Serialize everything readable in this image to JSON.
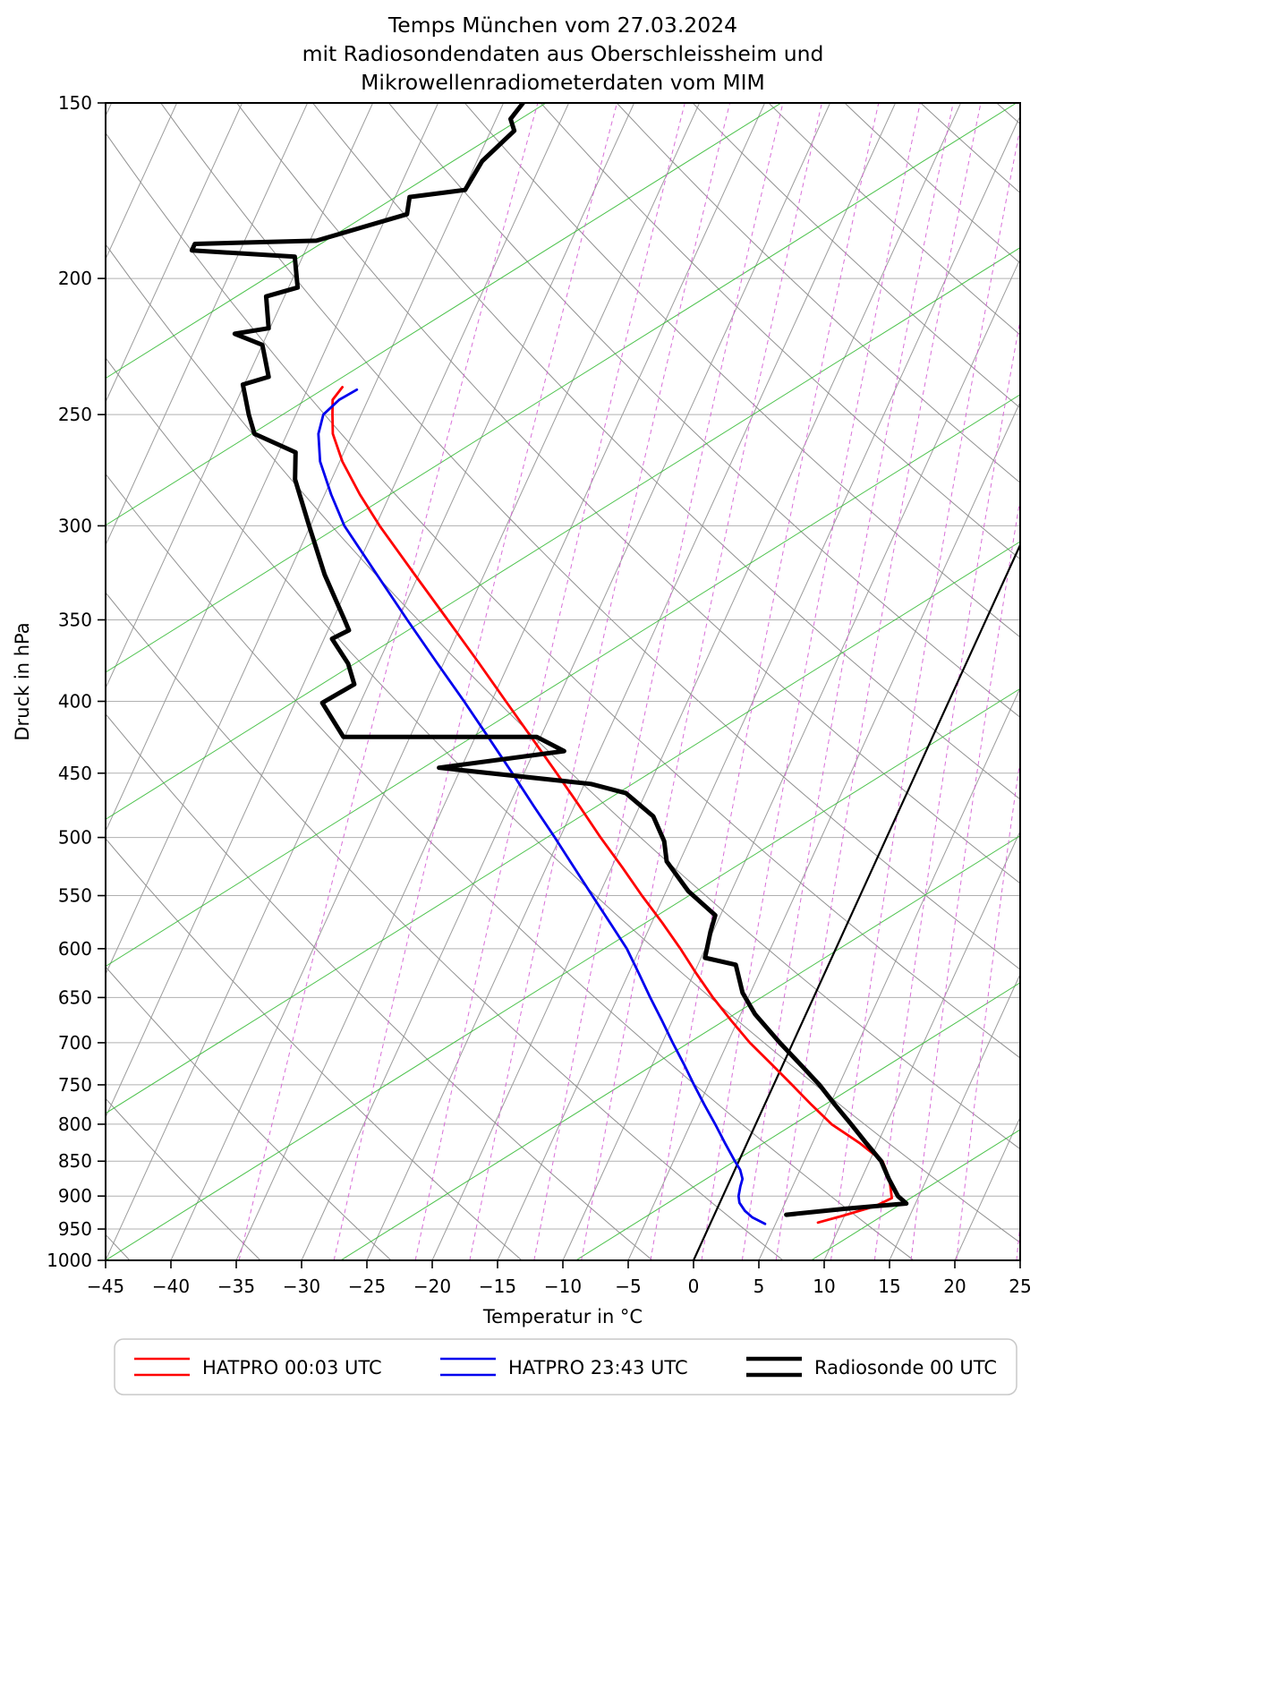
{
  "figure": {
    "title_lines": [
      "Temps München vom 27.03.2024",
      "mit Radiosondendaten aus Oberschleissheim und",
      "Mikrowellenradiometerdaten vom MIM"
    ],
    "xlabel": "Temperatur in °C",
    "ylabel": "Druck in hPa"
  },
  "axes": {
    "x_ticks": [
      {
        "value": -45,
        "label": "−45"
      },
      {
        "value": -40,
        "label": "−40"
      },
      {
        "value": -35,
        "label": "−35"
      },
      {
        "value": -30,
        "label": "−30"
      },
      {
        "value": -25,
        "label": "−25"
      },
      {
        "value": -20,
        "label": "−20"
      },
      {
        "value": -15,
        "label": "−15"
      },
      {
        "value": -10,
        "label": "−10"
      },
      {
        "value": -5,
        "label": "−5"
      },
      {
        "value": 0,
        "label": "0"
      },
      {
        "value": 5,
        "label": "5"
      },
      {
        "value": 10,
        "label": "10"
      },
      {
        "value": 15,
        "label": "15"
      },
      {
        "value": 20,
        "label": "20"
      },
      {
        "value": 25,
        "label": "25"
      }
    ],
    "y_ticks": [
      {
        "value": 150,
        "label": "150"
      },
      {
        "value": 200,
        "label": "200"
      },
      {
        "value": 250,
        "label": "250"
      },
      {
        "value": 300,
        "label": "300"
      },
      {
        "value": 350,
        "label": "350"
      },
      {
        "value": 400,
        "label": "400"
      },
      {
        "value": 450,
        "label": "450"
      },
      {
        "value": 500,
        "label": "500"
      },
      {
        "value": 550,
        "label": "550"
      },
      {
        "value": 600,
        "label": "600"
      },
      {
        "value": 650,
        "label": "650"
      },
      {
        "value": 700,
        "label": "700"
      },
      {
        "value": 750,
        "label": "750"
      },
      {
        "value": 800,
        "label": "800"
      },
      {
        "value": 850,
        "label": "850"
      },
      {
        "value": 900,
        "label": "900"
      },
      {
        "value": 950,
        "label": "950"
      },
      {
        "value": 1000,
        "label": "1000"
      }
    ]
  },
  "legend": {
    "entries": [
      {
        "label": "HATPRO 00:03 UTC",
        "color": "#ff0000",
        "width": 2.5
      },
      {
        "label": "HATPRO 23:43 UTC",
        "color": "#0000ee",
        "width": 2.5
      },
      {
        "label": "Radiosonde 00 UTC",
        "color": "#000000",
        "width": 4.5
      }
    ]
  },
  "chart_data": {
    "type": "line",
    "projection": "skew-t-log-p",
    "title": "Temps München vom 27.03.2024 mit Radiosondendaten aus Oberschleissheim und Mikrowellenradiometerdaten vom MIM",
    "x_axis": {
      "label": "Temperatur in °C",
      "range_c": [
        -45,
        25
      ],
      "skew_c_per_decade": 49.1
    },
    "y_axis": {
      "label": "Druck in hPa",
      "range_hpa": [
        150,
        1000
      ],
      "scale": "log"
    },
    "grid": {
      "isobars_hpa": [
        150,
        200,
        250,
        300,
        350,
        400,
        450,
        500,
        550,
        600,
        650,
        700,
        750,
        800,
        850,
        900,
        950,
        1000
      ],
      "isobar_color": "#b0b0b0",
      "isotherms_c": {
        "start": -120,
        "end": 40,
        "step": 5,
        "color": "#9c9c9c"
      },
      "zero_isotherm": {
        "t_c": 0,
        "color": "#000000",
        "width": 2.2
      },
      "dry_adiabats_theta_k": {
        "start": 220,
        "end": 450,
        "step": 10,
        "exponent": 0.2857,
        "color": "#909090"
      },
      "green_diagonals": {
        "t1000_values": [
          -153,
          -135,
          -117,
          -99,
          -81,
          -63,
          -45,
          -27,
          -9,
          9
        ],
        "c_per_decade": 122.9,
        "color": "#2eb82e"
      },
      "mixing_ratio_g_kg": {
        "values": [
          0.2,
          0.4,
          0.7,
          1,
          1.5,
          2,
          3,
          4,
          5,
          6,
          8,
          10,
          12,
          15,
          20,
          25
        ],
        "color": "#d45fd4",
        "dashed": true
      }
    },
    "series": [
      {
        "name": "HATPRO 00:03 UTC",
        "color": "#ff0000",
        "line_width": 2.8,
        "points_p_hpa_T_c": [
          [
            940,
            8.2
          ],
          [
            930,
            9.8
          ],
          [
            915,
            12.0
          ],
          [
            903,
            13.0
          ],
          [
            880,
            12.3
          ],
          [
            865,
            11.7
          ],
          [
            850,
            11.0
          ],
          [
            825,
            8.6
          ],
          [
            800,
            5.8
          ],
          [
            775,
            3.6
          ],
          [
            750,
            1.4
          ],
          [
            725,
            -0.9
          ],
          [
            700,
            -3.3
          ],
          [
            675,
            -5.5
          ],
          [
            650,
            -7.7
          ],
          [
            625,
            -9.8
          ],
          [
            600,
            -11.9
          ],
          [
            575,
            -14.2
          ],
          [
            550,
            -16.7
          ],
          [
            525,
            -19.2
          ],
          [
            500,
            -21.9
          ],
          [
            475,
            -24.6
          ],
          [
            450,
            -27.5
          ],
          [
            425,
            -30.6
          ],
          [
            400,
            -33.9
          ],
          [
            375,
            -37.4
          ],
          [
            350,
            -41.2
          ],
          [
            325,
            -45.3
          ],
          [
            300,
            -49.7
          ],
          [
            285,
            -52.3
          ],
          [
            270,
            -54.8
          ],
          [
            258,
            -56.5
          ],
          [
            250,
            -57.2
          ],
          [
            244,
            -57.7
          ],
          [
            239,
            -57.4
          ]
        ]
      },
      {
        "name": "HATPRO 23:43 UTC",
        "color": "#0000ee",
        "line_width": 2.8,
        "points_p_hpa_T_c": [
          [
            942,
            4.2
          ],
          [
            932,
            3.0
          ],
          [
            922,
            2.2
          ],
          [
            910,
            1.5
          ],
          [
            900,
            1.2
          ],
          [
            886,
            1.0
          ],
          [
            875,
            0.9
          ],
          [
            862,
            0.4
          ],
          [
            850,
            -0.3
          ],
          [
            825,
            -1.7
          ],
          [
            800,
            -3.1
          ],
          [
            775,
            -4.6
          ],
          [
            750,
            -6.1
          ],
          [
            725,
            -7.6
          ],
          [
            700,
            -9.2
          ],
          [
            675,
            -10.8
          ],
          [
            650,
            -12.5
          ],
          [
            625,
            -14.2
          ],
          [
            600,
            -16.0
          ],
          [
            575,
            -18.2
          ],
          [
            550,
            -20.5
          ],
          [
            525,
            -22.9
          ],
          [
            500,
            -25.4
          ],
          [
            475,
            -28.1
          ],
          [
            450,
            -30.9
          ],
          [
            425,
            -33.9
          ],
          [
            400,
            -37.1
          ],
          [
            375,
            -40.6
          ],
          [
            350,
            -44.3
          ],
          [
            325,
            -48.2
          ],
          [
            300,
            -52.4
          ],
          [
            285,
            -54.5
          ],
          [
            270,
            -56.5
          ],
          [
            258,
            -57.6
          ],
          [
            250,
            -57.9
          ],
          [
            244,
            -57.2
          ],
          [
            240,
            -56.2
          ]
        ]
      },
      {
        "name": "Radiosonde 00 UTC",
        "color": "#000000",
        "line_width": 5,
        "points_p_hpa_T_c": [
          [
            928,
            5.5
          ],
          [
            919,
            9.8
          ],
          [
            911,
            14.3
          ],
          [
            900,
            13.4
          ],
          [
            875,
            12.1
          ],
          [
            850,
            10.9
          ],
          [
            825,
            9.1
          ],
          [
            800,
            7.3
          ],
          [
            775,
            5.4
          ],
          [
            750,
            3.5
          ],
          [
            725,
            1.3
          ],
          [
            700,
            -1.0
          ],
          [
            668,
            -3.9
          ],
          [
            645,
            -5.6
          ],
          [
            616,
            -7.1
          ],
          [
            609,
            -9.7
          ],
          [
            583,
            -10.2
          ],
          [
            568,
            -10.4
          ],
          [
            546,
            -13.3
          ],
          [
            520,
            -16.0
          ],
          [
            503,
            -16.9
          ],
          [
            483,
            -18.6
          ],
          [
            465,
            -21.5
          ],
          [
            458,
            -24.5
          ],
          [
            446,
            -36.7
          ],
          [
            434,
            -27.7
          ],
          [
            424,
            -30.3
          ],
          [
            424,
            -45.1
          ],
          [
            401,
            -47.9
          ],
          [
            389,
            -46.1
          ],
          [
            376,
            -47.3
          ],
          [
            361,
            -49.4
          ],
          [
            356,
            -48.4
          ],
          [
            350,
            -49.1
          ],
          [
            325,
            -52.2
          ],
          [
            300,
            -55.1
          ],
          [
            278,
            -57.8
          ],
          [
            266,
            -58.7
          ],
          [
            258,
            -62.5
          ],
          [
            250,
            -63.6
          ],
          [
            238,
            -65.1
          ],
          [
            235,
            -63.4
          ],
          [
            223,
            -65.0
          ],
          [
            219,
            -67.5
          ],
          [
            217,
            -65.1
          ],
          [
            206,
            -66.4
          ],
          [
            203,
            -64.3
          ],
          [
            193,
            -65.6
          ],
          [
            191,
            -73.7
          ],
          [
            189,
            -73.7
          ],
          [
            188,
            -64.5
          ],
          [
            180,
            -58.5
          ],
          [
            175,
            -58.9
          ],
          [
            173,
            -54.9
          ],
          [
            165,
            -54.6
          ],
          [
            157,
            -53.2
          ],
          [
            154,
            -53.9
          ],
          [
            150,
            -53.5
          ]
        ]
      }
    ]
  }
}
